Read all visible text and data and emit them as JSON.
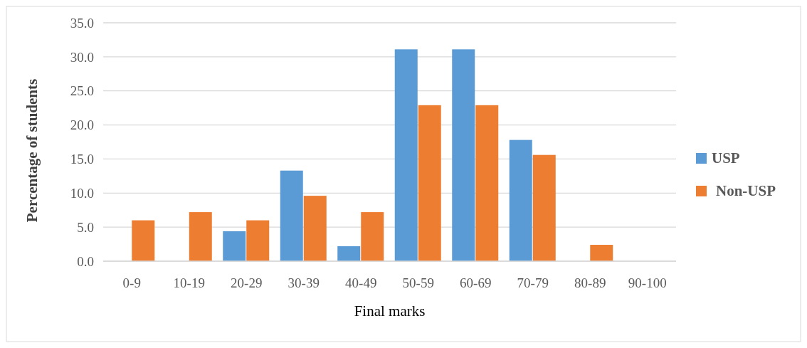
{
  "chart_data": {
    "type": "bar",
    "xlabel": "Final marks",
    "ylabel": "Percentage of students",
    "categories": [
      "0-9",
      "10-19",
      "20-29",
      "30-39",
      "40-49",
      "50-59",
      "60-69",
      "70-79",
      "80-89",
      "90-100"
    ],
    "series": [
      {
        "name": "USP",
        "color": "#5b9bd5",
        "values": [
          0,
          0,
          4.4,
          13.3,
          2.2,
          31.1,
          31.1,
          17.8,
          0,
          0
        ]
      },
      {
        "name": "Non-USP",
        "color": "#ed7d31",
        "values": [
          6.0,
          7.2,
          6.0,
          9.6,
          7.2,
          22.9,
          22.9,
          15.6,
          2.4,
          0
        ]
      }
    ],
    "ylim": [
      0,
      35
    ],
    "yticks": [
      {
        "value": 0,
        "label": "0.0"
      },
      {
        "value": 5,
        "label": "5.0"
      },
      {
        "value": 10,
        "label": "10.0"
      },
      {
        "value": 15,
        "label": "15.0"
      },
      {
        "value": 20,
        "label": "20.0"
      },
      {
        "value": 25,
        "label": "25.0"
      },
      {
        "value": 30,
        "label": "30.0"
      },
      {
        "value": 35,
        "label": "35.0"
      }
    ],
    "grid": "y",
    "legend": "right"
  }
}
